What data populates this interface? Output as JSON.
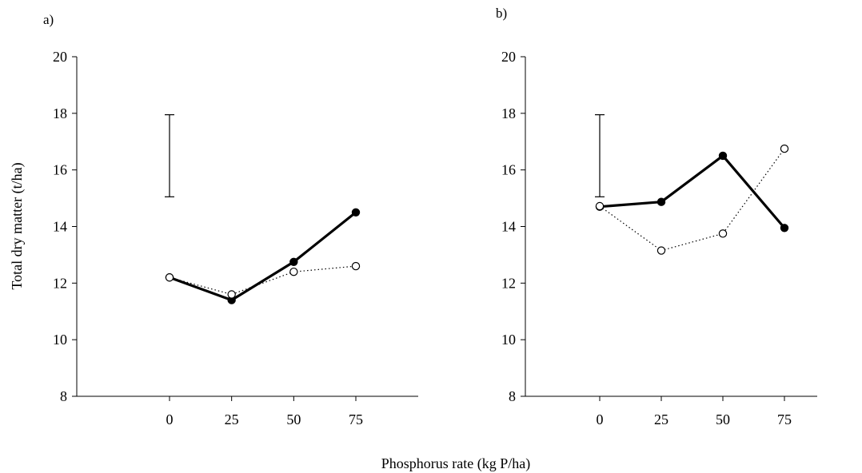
{
  "figure": {
    "xlabel": "Phosphorus rate (kg P/ha)",
    "ylabel": "Total dry matter (t/ha)"
  },
  "chart_data": [
    {
      "type": "line",
      "panel_label": "a)",
      "xlabel": "Phosphorus rate (kg P/ha)",
      "ylabel": "Total dry matter (t/ha)",
      "x": [
        0,
        25,
        50,
        75
      ],
      "x_tick_labels": [
        "0",
        "25",
        "50",
        "75"
      ],
      "xlim": [
        -25,
        100
      ],
      "ylim": [
        8,
        20
      ],
      "y_ticks": [
        8,
        10,
        12,
        14,
        16,
        18,
        20
      ],
      "y_tick_labels": [
        "8",
        "10",
        "12",
        "14",
        "16",
        "18",
        "20"
      ],
      "grid": false,
      "series": [
        {
          "style": "solid",
          "marker": "filled-circle",
          "color": "#000000",
          "values": [
            12.2,
            11.4,
            12.75,
            14.5
          ]
        },
        {
          "style": "dotted",
          "marker": "open-circle",
          "color": "#000000",
          "values": [
            12.2,
            11.6,
            12.4,
            12.6
          ]
        }
      ],
      "error_bar": {
        "x": 0,
        "low": 15.05,
        "high": 17.95
      }
    },
    {
      "type": "line",
      "panel_label": "b)",
      "xlabel": "Phosphorus rate (kg P/ha)",
      "ylabel": "Total dry matter (t/ha)",
      "x": [
        0,
        25,
        50,
        75
      ],
      "x_tick_labels": [
        "0",
        "25",
        "50",
        "75"
      ],
      "xlim": [
        -25,
        100
      ],
      "ylim": [
        8,
        20
      ],
      "y_ticks": [
        8,
        10,
        12,
        14,
        16,
        18,
        20
      ],
      "y_tick_labels": [
        "8",
        "10",
        "12",
        "14",
        "16",
        "18",
        "20"
      ],
      "grid": false,
      "series": [
        {
          "style": "solid",
          "marker": "filled-circle",
          "color": "#000000",
          "values": [
            14.7,
            14.87,
            16.5,
            13.95
          ]
        },
        {
          "style": "dotted",
          "marker": "open-circle",
          "color": "#000000",
          "values": [
            14.72,
            13.15,
            13.75,
            16.75
          ]
        }
      ],
      "error_bar": {
        "x": 0,
        "low": 15.05,
        "high": 17.95
      }
    }
  ]
}
